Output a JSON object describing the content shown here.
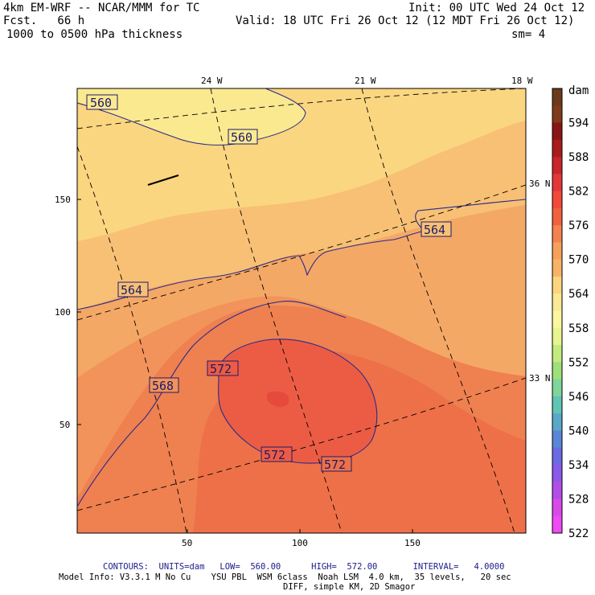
{
  "header": {
    "model": "4km EM-WRF -- NCAR/MMM for TC",
    "init": "Init: 00 UTC Wed 24 Oct 12",
    "fcst": "Fcst.   66 h",
    "valid": "Valid: 18 UTC Fri 26 Oct 12 (12 MDT Fri 26 Oct 12)",
    "field": "1000 to 0500 hPa thickness",
    "smooth": "sm= 4"
  },
  "axes": {
    "x_ticks": [
      "50",
      "100",
      "150"
    ],
    "y_ticks": [
      "50",
      "100",
      "150"
    ],
    "lon_labels": [
      "24 W",
      "21 W",
      "18 W"
    ],
    "lat_labels": [
      "36 N",
      "33 N"
    ]
  },
  "contour_labels": [
    "560",
    "560",
    "564",
    "564",
    "568",
    "572",
    "572",
    "572"
  ],
  "colorbar": {
    "unit": "dam",
    "levels": [
      "594",
      "588",
      "582",
      "576",
      "570",
      "564",
      "558",
      "552",
      "546",
      "540",
      "534",
      "528",
      "522"
    ],
    "colors": [
      "#6b3a1c",
      "#7f3b1a",
      "#8a1515",
      "#a81c1c",
      "#c7262a",
      "#e23838",
      "#f24a3a",
      "#f0623e",
      "#f38250",
      "#f7a05a",
      "#f8b464",
      "#fbd67e",
      "#fbe993",
      "#fbf7a0",
      "#e7f58e",
      "#c2ec7e",
      "#9fe07a",
      "#7fd69a",
      "#5fc6b2",
      "#5aa8c8",
      "#5a86d8",
      "#6a6ae2",
      "#8a5ae8",
      "#b04ee6",
      "#d84ae6",
      "#f04af2"
    ]
  },
  "footer": {
    "contours": "CONTOURS:  UNITS=dam   LOW=  560.00      HIGH=  572.00       INTERVAL=   4.0000",
    "model_info": "Model Info: V3.3.1 M No Cu    YSU PBL  WSM 6class  Noah LSM  4.0 km,  35 levels,   20 sec",
    "diff": "DIFF, simple KM, 2D Smagor"
  }
}
